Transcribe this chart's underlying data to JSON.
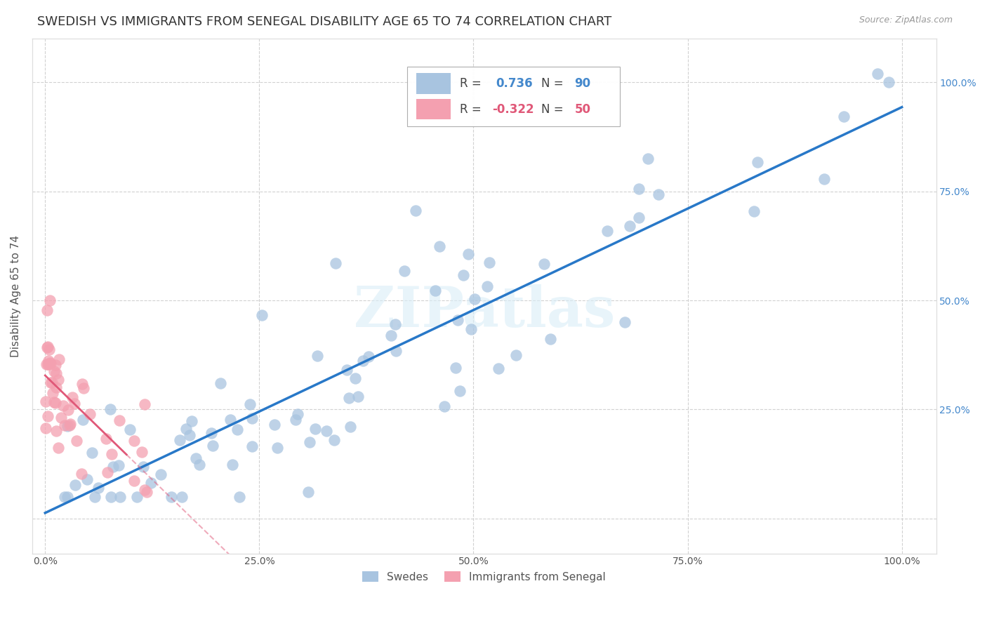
{
  "title": "SWEDISH VS IMMIGRANTS FROM SENEGAL DISABILITY AGE 65 TO 74 CORRELATION CHART",
  "source": "Source: ZipAtlas.com",
  "ylabel": "Disability Age 65 to 74",
  "swedes_color": "#a8c4e0",
  "swedes_edge_color": "#7aafd4",
  "senegal_color": "#f4a0b0",
  "senegal_edge_color": "#e87090",
  "swedes_line_color": "#2878c8",
  "senegal_line_color": "#e05878",
  "legend_R_swedes": "0.736",
  "legend_N_swedes": "90",
  "legend_R_senegal": "-0.322",
  "legend_N_senegal": "50",
  "legend_label_swedes": "Swedes",
  "legend_label_senegal": "Immigrants from Senegal",
  "watermark": "ZIPatlas",
  "right_tick_color": "#4488cc",
  "background_color": "#ffffff",
  "grid_color": "#cccccc",
  "title_fontsize": 13,
  "axis_label_fontsize": 11,
  "tick_fontsize": 10
}
